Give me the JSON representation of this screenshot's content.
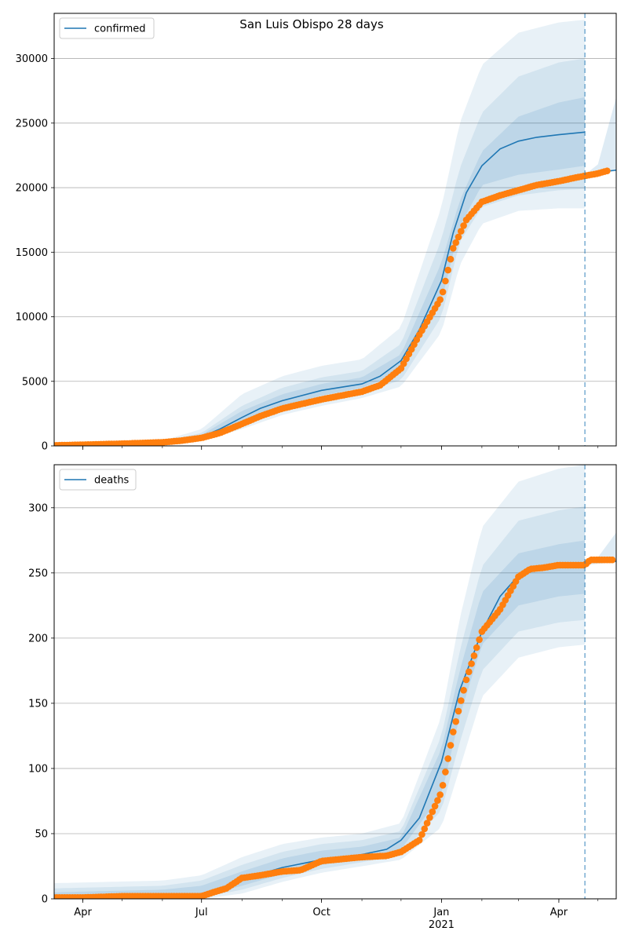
{
  "title": "San Luis Obispo 28 days",
  "colors": {
    "line": "#1f77b4",
    "observed": "#ff7f0e",
    "band": "#1f77b4",
    "grid": "#b0b0b0"
  },
  "chart_data": [
    {
      "type": "line",
      "legend": "confirmed",
      "legend_position": "top-left",
      "grid": "horizontal",
      "x_range": [
        "2020-03-10",
        "2021-05-15"
      ],
      "x_ticks": [
        {
          "date": "2020-04-01",
          "label": "Apr",
          "sublabel": ""
        },
        {
          "date": "2020-07-01",
          "label": "Jul",
          "sublabel": ""
        },
        {
          "date": "2020-10-01",
          "label": "Oct",
          "sublabel": ""
        },
        {
          "date": "2021-01-01",
          "label": "Jan",
          "sublabel": "2021"
        },
        {
          "date": "2021-04-01",
          "label": "Apr",
          "sublabel": ""
        }
      ],
      "ylim": [
        0,
        33500
      ],
      "y_ticks": [
        0,
        5000,
        10000,
        15000,
        20000,
        25000,
        30000
      ],
      "forecast_start": "2021-04-21",
      "model_median": {
        "x": [
          "2020-03-10",
          "2020-04-01",
          "2020-05-01",
          "2020-06-01",
          "2020-06-20",
          "2020-07-01",
          "2020-07-15",
          "2020-08-01",
          "2020-08-15",
          "2020-09-01",
          "2020-10-01",
          "2020-11-01",
          "2020-11-15",
          "2020-12-01",
          "2020-12-15",
          "2021-01-01",
          "2021-01-10",
          "2021-01-20",
          "2021-02-01",
          "2021-02-15",
          "2021-03-01",
          "2021-03-15",
          "2021-04-01",
          "2021-04-21",
          "2021-05-15"
        ],
        "y": [
          30,
          80,
          150,
          250,
          400,
          700,
          1300,
          2200,
          2900,
          3500,
          4300,
          4800,
          5400,
          6600,
          9000,
          12800,
          16500,
          19600,
          21700,
          23000,
          23600,
          23900,
          24100,
          24300,
          null
        ]
      },
      "bands": [
        {
          "x": [
            "2020-03-10",
            "2020-06-01",
            "2020-07-01",
            "2020-08-01",
            "2020-09-01",
            "2020-10-01",
            "2020-11-01",
            "2020-12-01",
            "2021-01-01",
            "2021-01-15",
            "2021-02-01",
            "2021-03-01",
            "2021-04-01",
            "2021-04-21"
          ],
          "upper": [
            100,
            400,
            1300,
            4000,
            5400,
            6200,
            6700,
            9200,
            18500,
            25000,
            29500,
            32000,
            32800,
            33000
          ],
          "lower": [
            0,
            150,
            400,
            1300,
            2400,
            3100,
            3700,
            4600,
            8800,
            14000,
            17200,
            18200,
            18400,
            18400
          ]
        },
        {
          "x": [
            "2020-03-10",
            "2020-06-01",
            "2020-07-01",
            "2020-08-01",
            "2020-09-01",
            "2020-10-01",
            "2020-11-01",
            "2020-12-01",
            "2021-01-01",
            "2021-01-15",
            "2021-02-01",
            "2021-03-01",
            "2021-04-01",
            "2021-04-21"
          ],
          "upper": [
            70,
            330,
            1000,
            3100,
            4500,
            5300,
            5800,
            7900,
            16000,
            21500,
            25800,
            28600,
            29700,
            30000
          ],
          "lower": [
            10,
            200,
            550,
            1700,
            2800,
            3500,
            4100,
            5100,
            10000,
            15800,
            18500,
            19400,
            19800,
            19900
          ]
        },
        {
          "x": [
            "2020-03-10",
            "2020-06-01",
            "2020-07-01",
            "2020-08-01",
            "2020-09-01",
            "2020-10-01",
            "2020-11-01",
            "2020-12-01",
            "2021-01-01",
            "2021-01-15",
            "2021-02-01",
            "2021-03-01",
            "2021-04-01",
            "2021-04-21"
          ],
          "upper": [
            50,
            290,
            850,
            2700,
            4000,
            4800,
            5300,
            7100,
            14200,
            19000,
            22800,
            25500,
            26600,
            27000
          ],
          "lower": [
            20,
            230,
            650,
            1950,
            3100,
            3900,
            4500,
            5700,
            11200,
            17000,
            20200,
            21000,
            21400,
            21700
          ]
        }
      ],
      "tail_band": {
        "x": [
          "2021-04-21",
          "2021-05-01",
          "2021-05-15"
        ],
        "upper": [
          21000,
          21800,
          27000
        ],
        "lower": [
          20800,
          21000,
          21300
        ],
        "median": [
          20900,
          21200,
          21350
        ]
      },
      "observed": {
        "x": [
          "2020-03-10",
          "2020-04-01",
          "2020-05-01",
          "2020-06-01",
          "2020-06-15",
          "2020-07-01",
          "2020-07-15",
          "2020-08-01",
          "2020-08-15",
          "2020-09-01",
          "2020-10-01",
          "2020-11-01",
          "2020-11-15",
          "2020-12-01",
          "2020-12-15",
          "2021-01-01",
          "2021-01-10",
          "2021-01-20",
          "2021-02-01",
          "2021-02-15",
          "2021-03-01",
          "2021-03-15",
          "2021-04-01",
          "2021-04-15",
          "2021-05-01",
          "2021-05-08"
        ],
        "y": [
          40,
          90,
          170,
          280,
          400,
          620,
          1000,
          1700,
          2300,
          2900,
          3600,
          4200,
          4700,
          6000,
          8600,
          11500,
          15300,
          17500,
          18900,
          19400,
          19800,
          20200,
          20500,
          20800,
          21100,
          21300
        ]
      }
    },
    {
      "type": "line",
      "legend": "deaths",
      "legend_position": "top-left",
      "grid": "horizontal",
      "x_range": [
        "2020-03-10",
        "2021-05-15"
      ],
      "x_ticks": [
        {
          "date": "2020-04-01",
          "label": "Apr",
          "sublabel": ""
        },
        {
          "date": "2020-07-01",
          "label": "Jul",
          "sublabel": ""
        },
        {
          "date": "2020-10-01",
          "label": "Oct",
          "sublabel": ""
        },
        {
          "date": "2021-01-01",
          "label": "Jan",
          "sublabel": "2021"
        },
        {
          "date": "2021-04-01",
          "label": "Apr",
          "sublabel": ""
        }
      ],
      "ylim": [
        0,
        333
      ],
      "y_ticks": [
        0,
        50,
        100,
        150,
        200,
        250,
        300
      ],
      "forecast_start": "2021-04-21",
      "model_median": {
        "x": [
          "2020-03-10",
          "2020-04-01",
          "2020-05-01",
          "2020-06-01",
          "2020-07-01",
          "2020-07-15",
          "2020-08-01",
          "2020-09-01",
          "2020-10-01",
          "2020-11-01",
          "2020-11-20",
          "2020-12-01",
          "2020-12-15",
          "2021-01-01",
          "2021-01-15",
          "2021-02-01",
          "2021-02-15",
          "2021-03-01",
          "2021-03-15",
          "2021-04-01",
          "2021-04-21",
          "2021-05-15"
        ],
        "y": [
          1,
          1,
          2,
          2,
          4,
          8,
          15,
          24,
          30,
          34,
          38,
          45,
          62,
          105,
          160,
          205,
          232,
          248,
          254,
          256,
          258,
          259
        ]
      },
      "bands": [
        {
          "x": [
            "2020-03-10",
            "2020-06-01",
            "2020-07-01",
            "2020-08-01",
            "2020-09-01",
            "2020-10-01",
            "2020-11-01",
            "2020-12-01",
            "2021-01-01",
            "2021-01-15",
            "2021-02-01",
            "2021-03-01",
            "2021-04-01",
            "2021-04-21"
          ],
          "upper": [
            12,
            14,
            18,
            32,
            42,
            47,
            50,
            58,
            140,
            215,
            285,
            320,
            330,
            333
          ],
          "lower": [
            0,
            0,
            0,
            4,
            13,
            20,
            25,
            30,
            55,
            100,
            155,
            185,
            193,
            195
          ]
        },
        {
          "x": [
            "2020-03-10",
            "2020-06-01",
            "2020-07-01",
            "2020-08-01",
            "2020-09-01",
            "2020-10-01",
            "2020-11-01",
            "2020-12-01",
            "2021-01-01",
            "2021-01-15",
            "2021-02-01",
            "2021-03-01",
            "2021-04-01",
            "2021-04-21"
          ],
          "upper": [
            8,
            10,
            14,
            26,
            36,
            42,
            45,
            52,
            125,
            190,
            255,
            290,
            298,
            301
          ],
          "lower": [
            0,
            0,
            1,
            7,
            16,
            23,
            28,
            34,
            68,
            120,
            175,
            205,
            212,
            214
          ]
        },
        {
          "x": [
            "2020-03-10",
            "2020-06-01",
            "2020-07-01",
            "2020-08-01",
            "2020-09-01",
            "2020-10-01",
            "2020-11-01",
            "2020-12-01",
            "2021-01-01",
            "2021-01-15",
            "2021-02-01",
            "2021-03-01",
            "2021-04-01",
            "2021-04-21"
          ],
          "upper": [
            5,
            7,
            10,
            21,
            31,
            37,
            40,
            47,
            115,
            175,
            235,
            265,
            272,
            275
          ],
          "lower": [
            0,
            1,
            2,
            10,
            19,
            26,
            31,
            38,
            80,
            140,
            195,
            225,
            232,
            234
          ]
        }
      ],
      "tail_band": {
        "x": [
          "2021-04-21",
          "2021-05-01",
          "2021-05-15"
        ],
        "upper": [
          260,
          262,
          281
        ],
        "lower": [
          256,
          257,
          258
        ],
        "median": [
          258,
          259,
          259
        ]
      },
      "observed": {
        "x": [
          "2020-03-10",
          "2020-04-01",
          "2020-05-01",
          "2020-06-01",
          "2020-07-01",
          "2020-07-10",
          "2020-07-20",
          "2020-08-01",
          "2020-08-15",
          "2020-09-01",
          "2020-09-15",
          "2020-10-01",
          "2020-11-01",
          "2020-11-20",
          "2020-12-01",
          "2020-12-15",
          "2021-01-01",
          "2021-01-10",
          "2021-01-20",
          "2021-02-01",
          "2021-02-15",
          "2021-03-01",
          "2021-03-10",
          "2021-03-20",
          "2021-04-01",
          "2021-04-21",
          "2021-04-25",
          "2021-05-12"
        ],
        "y": [
          1,
          1,
          2,
          2,
          2,
          5,
          8,
          16,
          18,
          21,
          22,
          29,
          32,
          33,
          36,
          45,
          82,
          128,
          168,
          205,
          222,
          247,
          253,
          254,
          256,
          256,
          260,
          260
        ]
      }
    }
  ]
}
